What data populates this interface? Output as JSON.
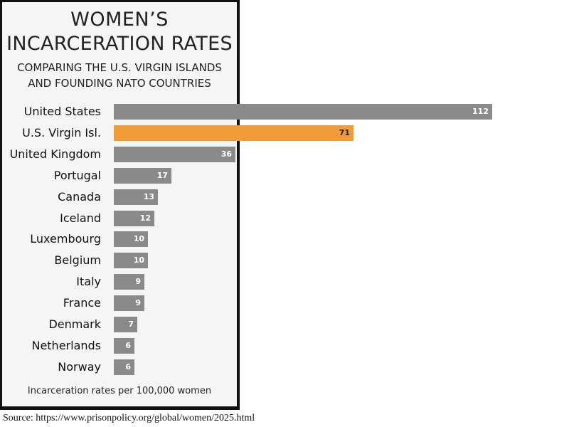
{
  "chart_data": {
    "type": "bar",
    "orientation": "horizontal",
    "title": "WOMEN'S INCARCERATION RATES",
    "title_lines": [
      "WOMEN’S",
      "INCARCERATION RATES"
    ],
    "subtitle_lines": [
      "COMPARING THE U.S. VIRGIN ISLANDS",
      "AND FOUNDING NATO COUNTRIES"
    ],
    "xlabel": "Incarceration rates per 100,000 women",
    "ylabel": "",
    "categories": [
      "United States",
      "U.S. Virgin Isl.",
      "United Kingdom",
      "Portugal",
      "Canada",
      "Iceland",
      "Luxembourg",
      "Belgium",
      "Italy",
      "France",
      "Denmark",
      "Netherlands",
      "Norway"
    ],
    "values": [
      112,
      71,
      36,
      17,
      13,
      12,
      10,
      10,
      9,
      9,
      7,
      6,
      6
    ],
    "highlight": "U.S. Virgin Isl.",
    "colors": {
      "default": "#8a8a8a",
      "highlight": "#f09c38"
    },
    "grid": false,
    "legend": "none"
  },
  "source": "Source: https://www.prisonpolicy.org/global/women/2025.html"
}
